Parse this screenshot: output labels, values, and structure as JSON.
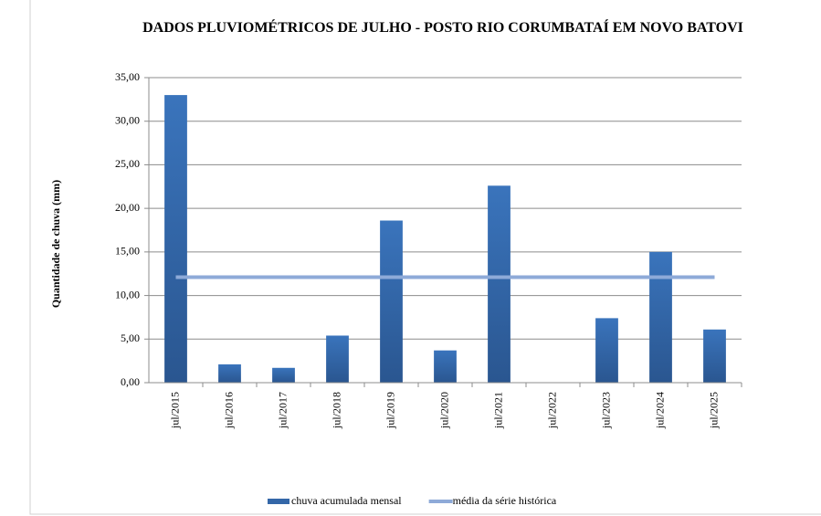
{
  "chart_data": {
    "type": "bar",
    "title": "DADOS PLUVIOMÉTRICOS DE JULHO - POSTO RIO CORUMBATAÍ EM NOVO BATOVI",
    "y_label": "Quantidade de chuva (mm)",
    "categories": [
      "jul/2015",
      "jul/2016",
      "jul/2017",
      "jul/2018",
      "jul/2019",
      "jul/2020",
      "jul/2021",
      "jul/2022",
      "jul/2023",
      "jul/2024",
      "jul/2025"
    ],
    "series": [
      {
        "name": "chuva acumulada mensal",
        "type": "bar",
        "color": "#3467a8",
        "values": [
          33.0,
          2.1,
          1.7,
          5.4,
          18.6,
          3.7,
          22.6,
          0,
          7.4,
          15.0,
          6.1
        ]
      },
      {
        "name": "média da série histórica",
        "type": "line",
        "color": "#8eaad8",
        "values": [
          12.1,
          12.1,
          12.1,
          12.1,
          12.1,
          12.1,
          12.1,
          12.1,
          12.1,
          12.1,
          12.1
        ]
      }
    ],
    "ylim": [
      0,
      35
    ],
    "yticks": [
      {
        "value": 0,
        "label": "0,00"
      },
      {
        "value": 5,
        "label": "5,00"
      },
      {
        "value": 10,
        "label": "10,00"
      },
      {
        "value": 15,
        "label": "15,00"
      },
      {
        "value": 20,
        "label": "20,00"
      },
      {
        "value": 25,
        "label": "25,00"
      },
      {
        "value": 30,
        "label": "30,00"
      },
      {
        "value": 35,
        "label": "35,00"
      }
    ],
    "grid": true,
    "legend": "bottom"
  }
}
